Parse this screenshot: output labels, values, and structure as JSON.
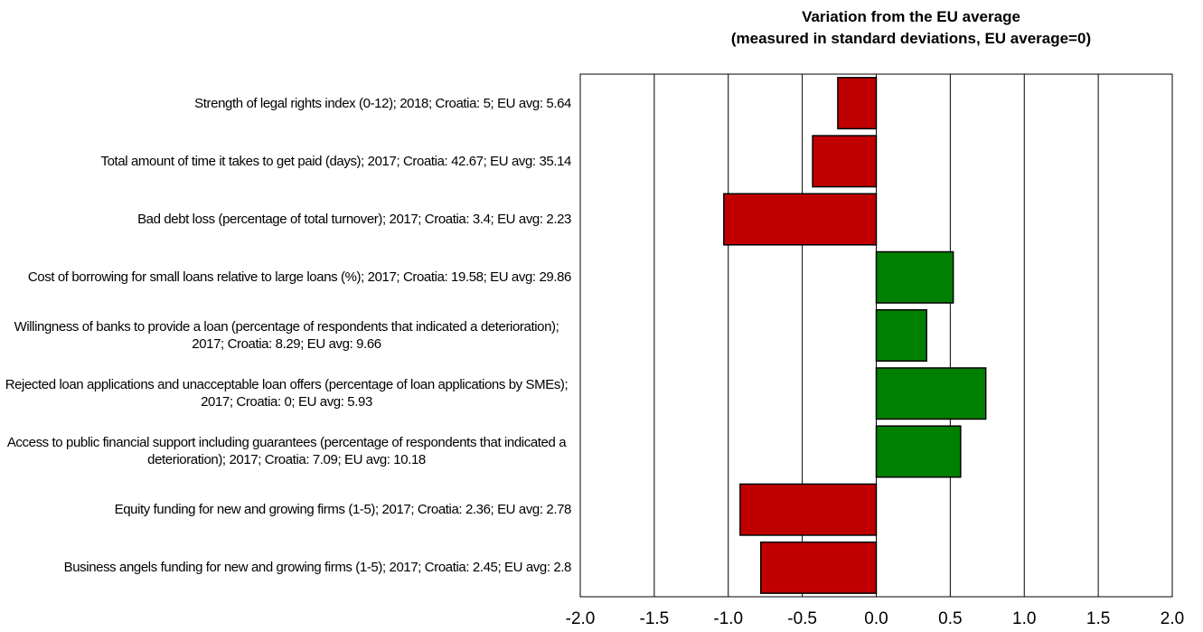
{
  "chart_data": {
    "type": "hbar",
    "title": "Variation from the EU average",
    "subtitle": "(measured in standard deviations, EU average=0)",
    "categories": [
      "Strength of legal rights index (0-12); 2018; Croatia: 5; EU avg: 5.64",
      "Total amount of time it takes to get paid (days); 2017; Croatia: 42.67; EU avg: 35.14",
      "Bad debt loss (percentage of total turnover); 2017; Croatia: 3.4; EU avg: 2.23",
      "Cost of borrowing for small loans relative to large loans (%); 2017; Croatia: 19.58; EU avg: 29.86",
      "Willingness of banks to provide a loan (percentage of respondents that indicated a deterioration); 2017; Croatia: 8.29; EU avg: 9.66",
      "Rejected loan applications and unacceptable loan offers (percentage of loan applications by SMEs); 2017; Croatia: 0; EU avg: 5.93",
      "Access to public financial support including guarantees (percentage of respondents that indicated a deterioration); 2017; Croatia: 7.09; EU avg: 10.18",
      "Equity funding for new and growing firms (1-5); 2017; Croatia: 2.36; EU avg: 2.78",
      "Business angels funding for new and growing firms (1-5); 2017; Croatia: 2.45; EU avg: 2.8"
    ],
    "values": [
      -0.26,
      -0.43,
      -1.03,
      0.52,
      0.34,
      0.74,
      0.57,
      -0.92,
      -0.78
    ],
    "colors": [
      "#c00000",
      "#c00000",
      "#c00000",
      "#008000",
      "#008000",
      "#008000",
      "#008000",
      "#c00000",
      "#c00000"
    ],
    "xlim": [
      -2,
      2
    ],
    "xticks": [
      {
        "value": -2,
        "label": "-2.0"
      },
      -1.5,
      {
        "value": -1,
        "label": "-1.0"
      },
      -0.5,
      {
        "value": 0,
        "label": "0.0"
      },
      0.5,
      {
        "value": 1,
        "label": "1.0"
      },
      1.5,
      {
        "value": 2,
        "label": "2.0"
      }
    ],
    "grid": true
  }
}
